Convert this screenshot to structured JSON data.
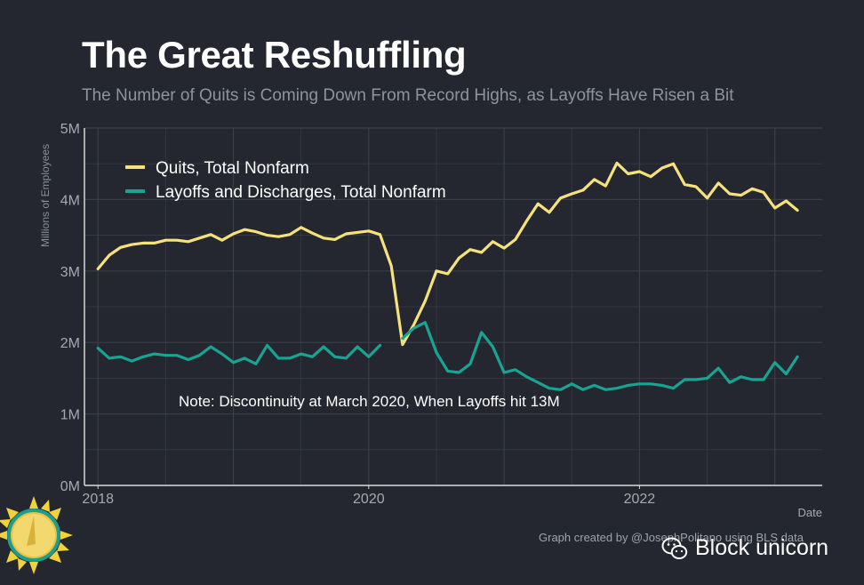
{
  "title": "The Great Reshuffling",
  "subtitle": "The Number of Quits is Coming Down From Record Highs, as Layoffs Have Risen a Bit",
  "credit": "Graph created by @JosephPolitano using BLS data",
  "watermark": "Block unicorn",
  "colors": {
    "background": "#24272f",
    "quits": "#f6e27d",
    "layoffs": "#18a393",
    "grid": "#3a3e47",
    "axis": "#d9d9d9",
    "tick_text": "#a6a9b0"
  },
  "chart_data": {
    "type": "line",
    "title": "The Great Reshuffling",
    "subtitle": "The Number of Quits is Coming Down From Record Highs, as Layoffs Have Risen a Bit",
    "xlabel": "Date",
    "ylabel": "Millions of Employees",
    "xlim": [
      2017.9,
      2023.35
    ],
    "ylim": [
      0,
      5
    ],
    "x_ticks": [
      2018,
      2020,
      2022
    ],
    "x_tick_labels": [
      "2018",
      "2020",
      "2022"
    ],
    "y_ticks": [
      0,
      1,
      2,
      3,
      4,
      5
    ],
    "y_tick_labels": [
      "0M",
      "1M",
      "2M",
      "3M",
      "4M",
      "5M"
    ],
    "grid": true,
    "legend_position": "top-left",
    "annotation": "Note: Discontinuity at March 2020, When Layoffs hit 13M",
    "x_start": 2018.0,
    "x_step_months": 1,
    "series": [
      {
        "name": "Quits, Total Nonfarm",
        "color": "#f6e27d",
        "values": [
          3.03,
          3.22,
          3.33,
          3.37,
          3.39,
          3.39,
          3.43,
          3.43,
          3.41,
          3.46,
          3.51,
          3.43,
          3.52,
          3.58,
          3.55,
          3.5,
          3.48,
          3.51,
          3.61,
          3.53,
          3.46,
          3.44,
          3.52,
          3.54,
          3.56,
          3.51,
          3.07,
          1.97,
          2.25,
          2.58,
          3.0,
          2.96,
          3.18,
          3.3,
          3.26,
          3.41,
          3.32,
          3.44,
          3.7,
          3.94,
          3.82,
          4.02,
          4.08,
          4.13,
          4.28,
          4.19,
          4.51,
          4.36,
          4.39,
          4.32,
          4.44,
          4.5,
          4.21,
          4.18,
          4.02,
          4.23,
          4.08,
          4.06,
          4.15,
          4.1,
          3.88,
          3.98,
          3.85
        ]
      },
      {
        "name": "Layoffs and Discharges, Total Nonfarm",
        "color": "#18a393",
        "segments": [
          {
            "start_index": 0,
            "values": [
              1.92,
              1.78,
              1.8,
              1.74,
              1.8,
              1.84,
              1.82,
              1.82,
              1.76,
              1.82,
              1.94,
              1.84,
              1.72,
              1.78,
              1.7,
              1.96,
              1.78,
              1.78,
              1.84,
              1.8,
              1.94,
              1.8,
              1.78,
              1.94,
              1.8,
              1.96
            ]
          },
          {
            "start_index": 27,
            "values": [
              2.06,
              2.2,
              2.28,
              1.86,
              1.6,
              1.58,
              1.7,
              2.14,
              1.94,
              1.58,
              1.62,
              1.52,
              1.44,
              1.36,
              1.34,
              1.42,
              1.34,
              1.4,
              1.34,
              1.36,
              1.4,
              1.42,
              1.42,
              1.4,
              1.36,
              1.48,
              1.48,
              1.5,
              1.64,
              1.44,
              1.52,
              1.48,
              1.48,
              1.72,
              1.56,
              1.8
            ]
          }
        ]
      }
    ]
  }
}
